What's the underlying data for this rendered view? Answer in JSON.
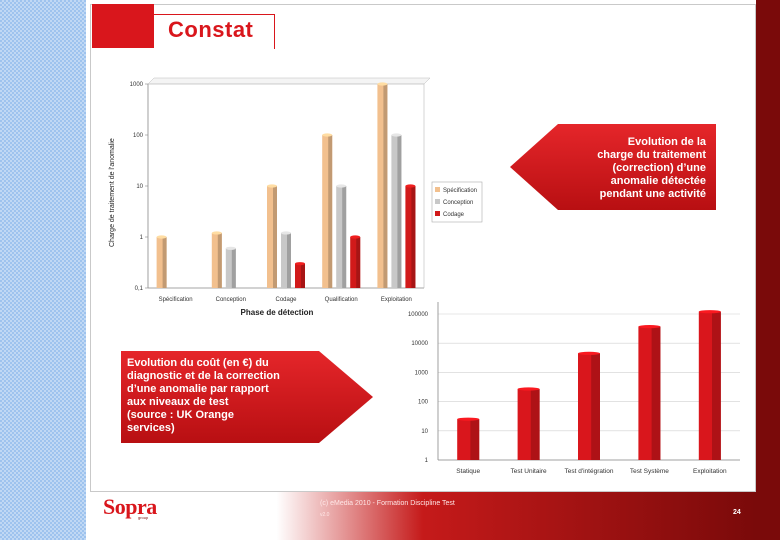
{
  "slide": {
    "title": "Constat",
    "callout_top": [
      "Evolution de la",
      "charge du traitement",
      "(correction) d’une",
      "anomalie détectée",
      "pendant une activité"
    ],
    "callout_bottom": [
      "Evolution du coût (en €) du",
      "diagnostic et de la correction",
      "d’une anomalie par rapport",
      "aux niveaux de test",
      "(source : UK Orange",
      "services)"
    ]
  },
  "footer": {
    "logo": "Sopra",
    "logo_sub": "group",
    "copyright": "(c) eMedia 2010 - Formation Discipline Test",
    "version": "v2.0",
    "page": "24"
  },
  "colors": {
    "accent_red": "#d9161c",
    "dark_red": "#7a0a0a",
    "specification": "#f2c08e",
    "conception": "#c8c8c8",
    "codage": "#d11a1a"
  },
  "chart_data": [
    {
      "type": "bar",
      "ylabel": "Charge de traitement de l'anomalie",
      "xlabel": "Phase de détection",
      "scale": "log",
      "ylim": [
        0.1,
        1000
      ],
      "yticks": [
        "0,1",
        "1",
        "10",
        "100",
        "1000"
      ],
      "categories": [
        "Spécification",
        "Conception",
        "Codage",
        "Qualification",
        "Exploitation"
      ],
      "legend_position": "right",
      "series": [
        {
          "name": "Spécification",
          "color": "#f2c08e",
          "values": [
            1,
            1.2,
            10,
            100,
            1000
          ]
        },
        {
          "name": "Conception",
          "color": "#c8c8c8",
          "values": [
            null,
            0.6,
            1.2,
            10,
            100
          ]
        },
        {
          "name": "Codage",
          "color": "#d11a1a",
          "values": [
            null,
            null,
            0.3,
            1,
            10
          ]
        }
      ]
    },
    {
      "type": "bar",
      "scale": "log",
      "ylim": [
        1,
        100000
      ],
      "yticks": [
        "1",
        "10",
        "100",
        "1000",
        "10000",
        "100000"
      ],
      "categories": [
        "Statique",
        "Test Unitaire",
        "Test d'intégration",
        "Test Système",
        "Exploitation"
      ],
      "values": [
        25,
        270,
        4500,
        37000,
        120000
      ],
      "grid": true,
      "color": "#d9161c"
    }
  ]
}
